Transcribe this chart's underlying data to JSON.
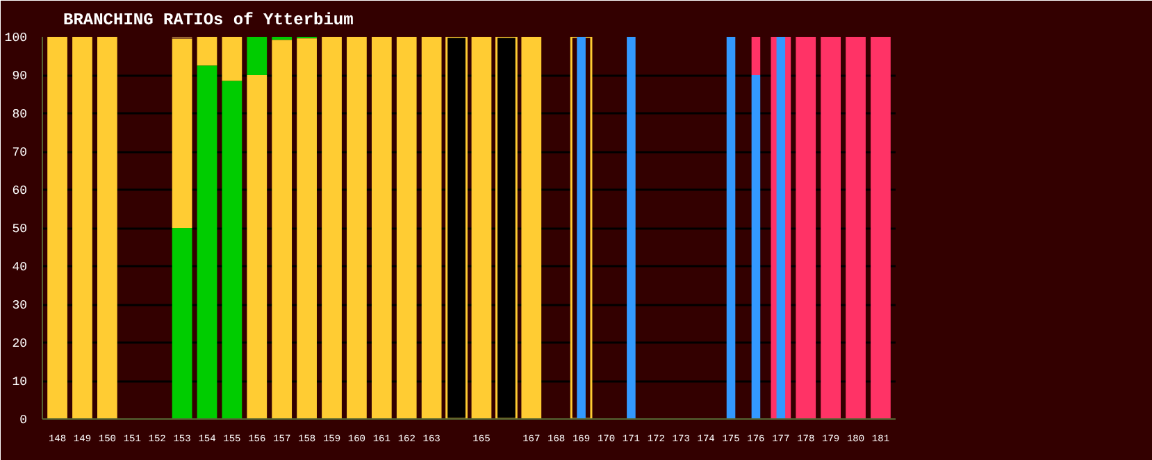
{
  "chart_data": {
    "type": "bar",
    "title": "BRANCHING RATIOs of Ytterbium",
    "categories": [
      "148",
      "149",
      "150",
      "151",
      "152",
      "153",
      "154",
      "155",
      "156",
      "157",
      "158",
      "159",
      "160",
      "161",
      "162",
      "163",
      null,
      "165",
      null,
      "167",
      "168",
      "169",
      "170",
      "171",
      "172",
      "173",
      "174",
      "175",
      "176",
      "177",
      "178",
      "179",
      "180",
      "181"
    ],
    "ylim": [
      0,
      100
    ],
    "yticks": [
      0,
      10,
      20,
      30,
      40,
      50,
      60,
      70,
      80,
      90,
      100
    ],
    "grid": "y",
    "series": [
      {
        "color": "#00cc00",
        "base": [
          null,
          null,
          null,
          null,
          null,
          0,
          0,
          0,
          90,
          99.2,
          99.6,
          null,
          null,
          null,
          null,
          null,
          null,
          null,
          null,
          null,
          null,
          null,
          null,
          null,
          null,
          null,
          null,
          null,
          null,
          null,
          null,
          null,
          null,
          null
        ],
        "values": [
          null,
          null,
          null,
          null,
          null,
          50,
          92.5,
          88.5,
          10,
          0.8,
          0.4,
          null,
          null,
          null,
          null,
          null,
          null,
          null,
          null,
          null,
          null,
          null,
          null,
          null,
          null,
          null,
          null,
          null,
          null,
          null,
          null,
          null,
          null,
          null
        ]
      },
      {
        "color": "#ffcc33",
        "base": [
          0,
          0,
          0,
          null,
          null,
          50,
          92.5,
          88.5,
          0,
          0,
          0,
          0,
          0,
          0,
          0,
          0,
          null,
          0,
          null,
          0,
          null,
          null,
          null,
          null,
          null,
          null,
          null,
          null,
          null,
          null,
          null,
          null,
          null,
          null
        ],
        "values": [
          100,
          100,
          100,
          null,
          null,
          49.5,
          7.5,
          11.5,
          90,
          99.2,
          99.6,
          100,
          100,
          100,
          100,
          100,
          null,
          100,
          null,
          100,
          null,
          null,
          null,
          null,
          null,
          null,
          null,
          null,
          null,
          null,
          null,
          null,
          null,
          null
        ]
      },
      {
        "color": "#996633",
        "base": [
          null,
          null,
          null,
          null,
          null,
          99.5,
          null,
          null,
          null,
          null,
          null,
          null,
          null,
          null,
          null,
          null,
          null,
          null,
          null,
          null,
          null,
          null,
          null,
          null,
          null,
          null,
          null,
          null,
          null,
          null,
          null,
          null,
          null,
          null
        ],
        "values": [
          null,
          null,
          null,
          null,
          null,
          0.5,
          null,
          null,
          null,
          null,
          null,
          null,
          null,
          null,
          null,
          null,
          null,
          null,
          null,
          null,
          null,
          null,
          null,
          null,
          null,
          null,
          null,
          null,
          null,
          null,
          null,
          null,
          null,
          null
        ]
      },
      {
        "colors": [
          null,
          null,
          null,
          null,
          null,
          null,
          null,
          null,
          null,
          null,
          null,
          null,
          null,
          null,
          null,
          null,
          "#000000",
          null,
          "#000000",
          null,
          null,
          "#330000",
          null,
          null,
          null,
          null,
          null,
          null,
          null,
          null,
          null,
          null,
          null,
          null
        ],
        "base": [
          null,
          null,
          null,
          null,
          null,
          null,
          null,
          null,
          null,
          null,
          null,
          null,
          null,
          null,
          null,
          null,
          0,
          null,
          0,
          null,
          null,
          0,
          null,
          null,
          null,
          null,
          null,
          null,
          null,
          null,
          null,
          null,
          null,
          null
        ],
        "values": [
          null,
          null,
          null,
          null,
          null,
          null,
          null,
          null,
          null,
          null,
          null,
          null,
          null,
          null,
          null,
          null,
          100,
          null,
          100,
          null,
          null,
          100,
          null,
          null,
          null,
          null,
          null,
          null,
          null,
          null,
          null,
          null,
          null,
          null
        ]
      },
      {
        "color": "#ff3366",
        "base": [
          null,
          null,
          null,
          null,
          null,
          null,
          null,
          null,
          null,
          null,
          null,
          null,
          null,
          null,
          null,
          null,
          null,
          null,
          null,
          null,
          null,
          null,
          null,
          null,
          null,
          null,
          null,
          null,
          null,
          0,
          0,
          0,
          0,
          0
        ],
        "values": [
          null,
          null,
          null,
          null,
          null,
          null,
          null,
          null,
          null,
          null,
          null,
          null,
          null,
          null,
          null,
          null,
          null,
          null,
          null,
          null,
          null,
          null,
          null,
          null,
          null,
          null,
          null,
          null,
          null,
          100,
          100,
          100,
          100,
          100
        ]
      },
      {
        "color": "#3399ff",
        "base": [
          null,
          null,
          null,
          null,
          null,
          null,
          null,
          null,
          null,
          null,
          null,
          null,
          null,
          null,
          null,
          null,
          null,
          null,
          null,
          null,
          null,
          0,
          null,
          0,
          null,
          null,
          null,
          0,
          0,
          0,
          null,
          null,
          null,
          null
        ],
        "values": [
          null,
          null,
          null,
          null,
          null,
          null,
          null,
          null,
          null,
          null,
          null,
          null,
          null,
          null,
          null,
          null,
          null,
          null,
          null,
          null,
          null,
          100,
          null,
          100,
          null,
          null,
          null,
          100,
          90,
          100,
          null,
          null,
          null,
          null
        ]
      },
      {
        "color": "#ff3366",
        "base": [
          null,
          null,
          null,
          null,
          null,
          null,
          null,
          null,
          null,
          null,
          null,
          null,
          null,
          null,
          null,
          null,
          null,
          null,
          null,
          null,
          null,
          null,
          null,
          null,
          null,
          null,
          null,
          null,
          90,
          null,
          null,
          null,
          null,
          null
        ],
        "values": [
          null,
          null,
          null,
          null,
          null,
          null,
          null,
          null,
          null,
          null,
          null,
          null,
          null,
          null,
          null,
          null,
          null,
          null,
          null,
          null,
          null,
          null,
          null,
          null,
          null,
          null,
          null,
          null,
          10,
          null,
          null,
          null,
          null,
          null
        ]
      }
    ]
  }
}
